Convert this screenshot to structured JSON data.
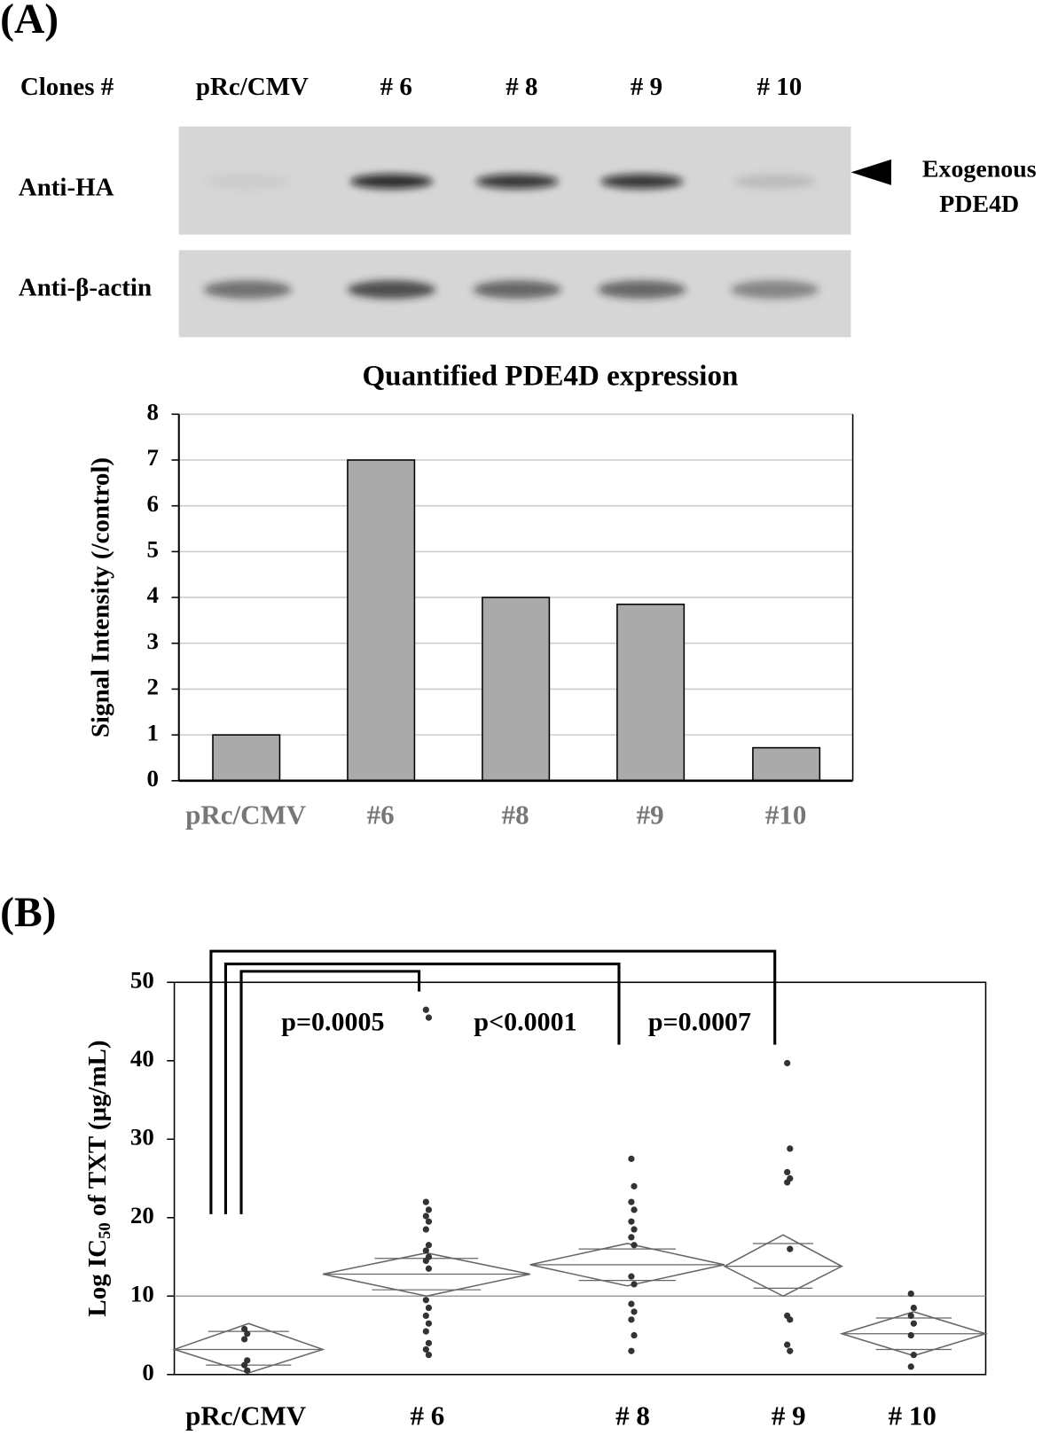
{
  "panel_a": {
    "label": "(A)",
    "blot": {
      "header_label": "Clones  #",
      "lanes": [
        "pRc/CMV",
        "# 6",
        "# 8",
        "# 9",
        "# 10"
      ],
      "rows": [
        "Anti-HA",
        "Anti-β-actin"
      ],
      "annotation": [
        "Exogenous",
        "PDE4D"
      ]
    }
  },
  "panel_b": {
    "label": "(B)"
  },
  "chart_data": [
    {
      "type": "bar",
      "title": "Quantified PDE4D expression",
      "ylabel": "Signal Intensity (/control)",
      "categories": [
        "pRc/CMV",
        "#6",
        "#8",
        "#9",
        "#10"
      ],
      "values": [
        1,
        7,
        4,
        3.85,
        0.72
      ],
      "color": "#aaaaaa",
      "ylim": [
        0,
        8
      ],
      "yticks": [
        0,
        1,
        2,
        3,
        4,
        5,
        6,
        7,
        8
      ],
      "grid": true
    },
    {
      "type": "scatter",
      "ylabel": [
        "Log IC",
        "50",
        " of TXT (μg/mL)"
      ],
      "categories": [
        "pRc/CMV",
        "# 6",
        "# 8",
        "# 9",
        "# 10"
      ],
      "values": [
        [
          5.8,
          5.2,
          4.5,
          1.8,
          1.2,
          0.5
        ],
        [
          46.5,
          45.5,
          22,
          21,
          20.2,
          19.5,
          18.5,
          16.5,
          15.8,
          15,
          14.5,
          13.5,
          9.5,
          8.5,
          7.5,
          6.5,
          5.5,
          4,
          3.2,
          2.5
        ],
        [
          27.5,
          24,
          22,
          21,
          19.5,
          18.5,
          17.5,
          16.5,
          12.5,
          11.5,
          9,
          8,
          7,
          5,
          3
        ],
        [
          39.7,
          28.8,
          25.8,
          25,
          24.5,
          16,
          7.5,
          7,
          3.8,
          3
        ],
        [
          10.3,
          8.5,
          7.5,
          6.5,
          5,
          2.5,
          1
        ]
      ],
      "diamonds": [
        {
          "mean": 3.2,
          "lower": 0.2,
          "upper": 6.5,
          "overlap": [
            1.2,
            5.5
          ]
        },
        {
          "mean": 12.8,
          "lower": 10,
          "upper": 15.5,
          "overlap": [
            10.8,
            14.8
          ]
        },
        {
          "mean": 14,
          "lower": 11.3,
          "upper": 16.7,
          "overlap": [
            12,
            16
          ]
        },
        {
          "mean": 13.8,
          "lower": 10,
          "upper": 17.8,
          "overlap": [
            11,
            16.7
          ]
        },
        {
          "mean": 5.2,
          "lower": 2.4,
          "upper": 8,
          "overlap": [
            3.2,
            7.2
          ]
        }
      ],
      "color": "#333333",
      "ref_line": 10,
      "ylim": [
        0,
        50
      ],
      "yticks": [
        0,
        10,
        20,
        30,
        40,
        50
      ],
      "comparisons": [
        "p=0.0005",
        "p<0.0001",
        "p=0.0007"
      ]
    }
  ]
}
